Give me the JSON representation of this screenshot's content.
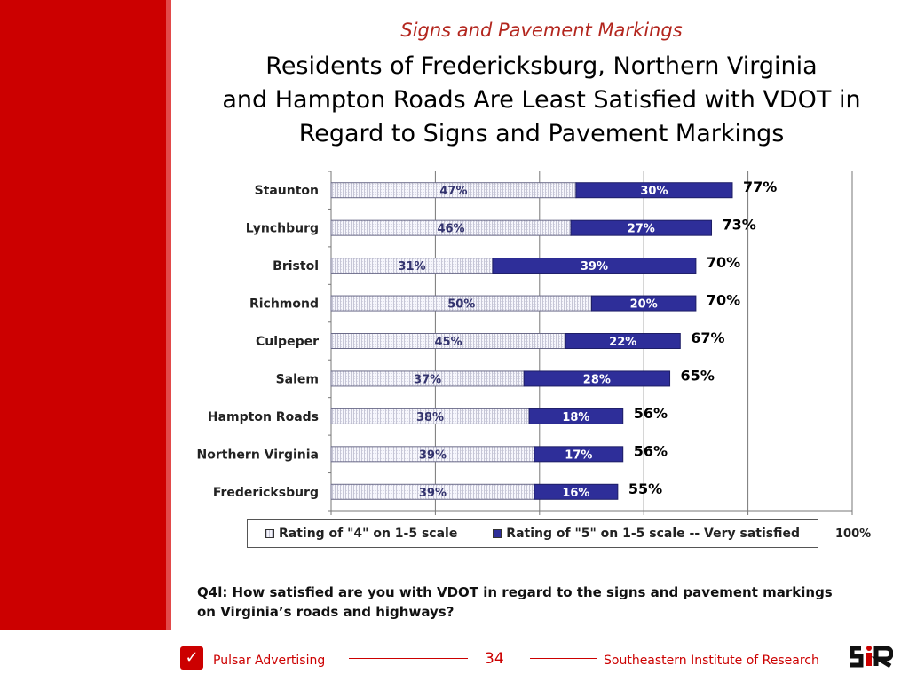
{
  "slide": {
    "subtitle": "Signs and Pavement Markings",
    "title_lines": [
      "Residents of Fredericksburg, Northern Virginia",
      "and Hampton Roads Are Least Satisfied with VDOT in",
      "Regard to Signs and Pavement Markings"
    ],
    "question_line1": "Q4l:  How satisfied are you with VDOT in regard to the signs and pavement markings",
    "question_line2": "on Virginia’s roads and highways?"
  },
  "chart_data": {
    "type": "bar",
    "orientation": "horizontal",
    "stacked": true,
    "categories": [
      "Staunton",
      "Lynchburg",
      "Bristol",
      "Richmond",
      "Culpeper",
      "Salem",
      "Hampton Roads",
      "Northern Virginia",
      "Fredericksburg"
    ],
    "series": [
      {
        "name": "Rating of \"4\" on 1-5 scale",
        "values": [
          47,
          46,
          31,
          50,
          45,
          37,
          38,
          39,
          39
        ],
        "labels": [
          "47%",
          "46%",
          "31%",
          "50%",
          "45%",
          "37%",
          "38%",
          "39%",
          "39%"
        ],
        "color": "#ebebf5"
      },
      {
        "name": "Rating of \"5\" on 1-5 scale -- Very satisfied",
        "values": [
          30,
          27,
          39,
          20,
          22,
          28,
          18,
          17,
          16
        ],
        "labels": [
          "30%",
          "27%",
          "39%",
          "20%",
          "22%",
          "28%",
          "18%",
          "17%",
          "16%"
        ],
        "color": "#2e2e99"
      }
    ],
    "totals": [
      "77%",
      "73%",
      "70%",
      "70%",
      "67%",
      "65%",
      "56%",
      "56%",
      "55%"
    ],
    "xlim": [
      0,
      100
    ],
    "x_max_label": "100%",
    "grid": true,
    "legend_position": "bottom",
    "title": "",
    "xlabel": "",
    "ylabel": ""
  },
  "footer": {
    "left_text": "Pulsar Advertising",
    "page_number": "34",
    "right_text": "Southeastern Institute of Research",
    "left_logo_icon": "pulsar-logo-icon",
    "right_logo_icon": "sir-logo-icon",
    "accent_color": "#cc0000"
  }
}
